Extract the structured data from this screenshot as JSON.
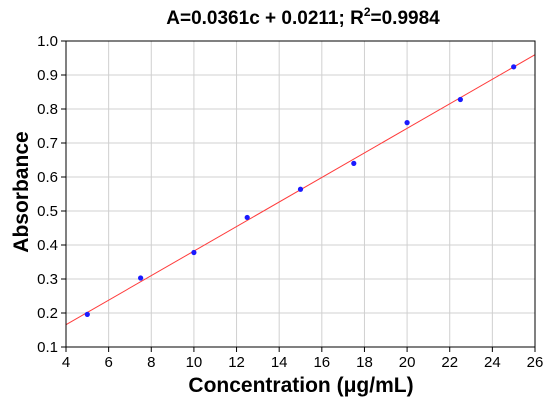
{
  "chart_data": {
    "type": "scatter",
    "title_main": "A=0.0361c + 0.0211;   R",
    "title_sup": "2",
    "title_tail": "=0.9984",
    "xlabel": "Concentration (μg/mL)",
    "ylabel": "Absorbance",
    "xlim": [
      4,
      26
    ],
    "ylim": [
      0.1,
      1.0
    ],
    "xticks": [
      4,
      6,
      8,
      10,
      12,
      14,
      16,
      18,
      20,
      22,
      24,
      26
    ],
    "yticks": [
      "0.1",
      "0.2",
      "0.3",
      "0.4",
      "0.5",
      "0.6",
      "0.7",
      "0.8",
      "0.9",
      "1.0"
    ],
    "grid": true,
    "points": {
      "x": [
        5,
        7.5,
        10,
        12.5,
        15,
        17.5,
        20,
        22.5,
        25
      ],
      "y": [
        0.196,
        0.303,
        0.378,
        0.481,
        0.564,
        0.64,
        0.76,
        0.828,
        0.924
      ],
      "color": "#1a1aff"
    },
    "fit_line": {
      "slope": 0.0361,
      "intercept": 0.0211,
      "color": "#ff3b3b"
    }
  }
}
